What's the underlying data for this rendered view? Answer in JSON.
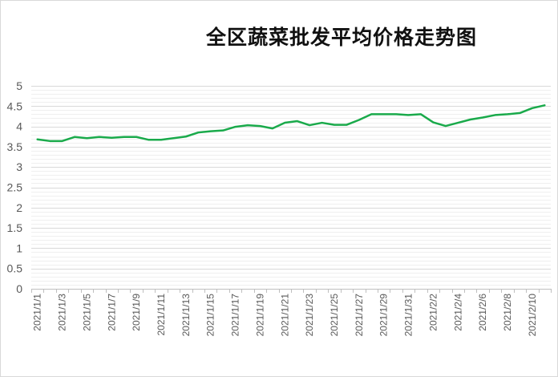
{
  "chart_data": {
    "type": "line",
    "title": "全区蔬菜批发平均价格走势图",
    "xlabel": "",
    "ylabel": "",
    "ylim": [
      0,
      5
    ],
    "y_major_step": 0.5,
    "y_minor_step": 0.1,
    "grid": true,
    "legend": "none",
    "line_color": "#1aaa4b",
    "x_tick_labels": [
      "2021/1/1",
      "2021/1/3",
      "2021/1/5",
      "2021/1/7",
      "2021/1/9",
      "2021/1/11",
      "2021/1/13",
      "2021/1/15",
      "2021/1/17",
      "2021/1/19",
      "2021/1/21",
      "2021/1/23",
      "2021/1/25",
      "2021/1/27",
      "2021/1/29",
      "2021/1/31",
      "2021/2/2",
      "2021/2/4",
      "2021/2/6",
      "2021/2/8",
      "2021/2/10"
    ],
    "series": [
      {
        "x": [
          "2021/1/1",
          "2021/1/2",
          "2021/1/3",
          "2021/1/4",
          "2021/1/5",
          "2021/1/6",
          "2021/1/7",
          "2021/1/8",
          "2021/1/9",
          "2021/1/10",
          "2021/1/11",
          "2021/1/12",
          "2021/1/13",
          "2021/1/14",
          "2021/1/15",
          "2021/1/16",
          "2021/1/17",
          "2021/1/18",
          "2021/1/19",
          "2021/1/20",
          "2021/1/21",
          "2021/1/22",
          "2021/1/23",
          "2021/1/24",
          "2021/1/25",
          "2021/1/26",
          "2021/1/27",
          "2021/1/28",
          "2021/1/29",
          "2021/1/30",
          "2021/1/31",
          "2021/2/1",
          "2021/2/2",
          "2021/2/3",
          "2021/2/4",
          "2021/2/5",
          "2021/2/6",
          "2021/2/7",
          "2021/2/8",
          "2021/2/9",
          "2021/2/10",
          "2021/2/11"
        ],
        "values": [
          3.68,
          3.64,
          3.64,
          3.74,
          3.71,
          3.74,
          3.72,
          3.74,
          3.74,
          3.67,
          3.67,
          3.71,
          3.75,
          3.85,
          3.88,
          3.9,
          3.99,
          4.03,
          4.01,
          3.95,
          4.09,
          4.13,
          4.03,
          4.09,
          4.04,
          4.04,
          4.16,
          4.3,
          4.3,
          4.3,
          4.28,
          4.3,
          4.1,
          4.01,
          4.09,
          4.17,
          4.22,
          4.28,
          4.3,
          4.33,
          4.45,
          4.52
        ]
      }
    ]
  }
}
